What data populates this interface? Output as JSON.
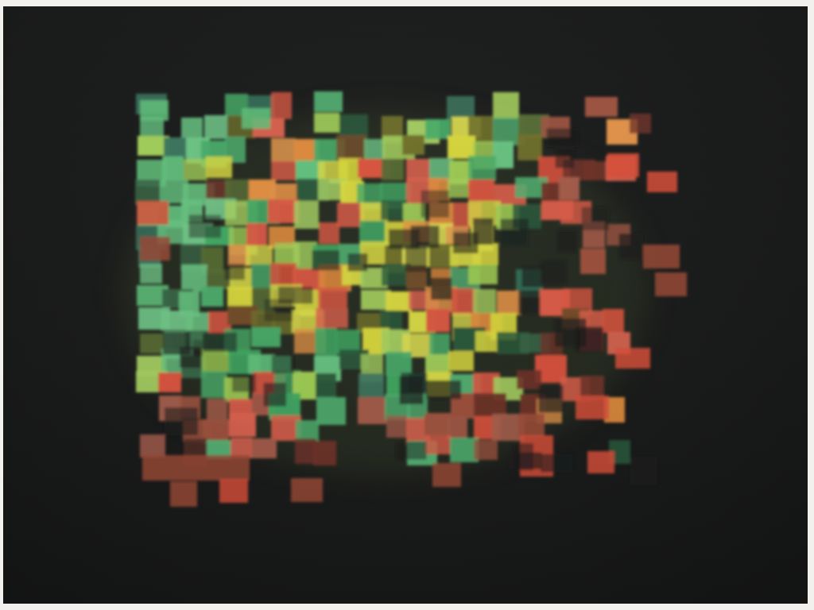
{
  "image": {
    "subject": "pixel-mosaic",
    "background_color": "#1a1b1b",
    "palette": {
      "green": "#3fa862",
      "mint": "#5fc07a",
      "lime": "#9fce52",
      "yellow": "#d9d93c",
      "orange": "#e08a3a",
      "red": "#d9503a",
      "brick": "#9a4a36",
      "teal": "#2f6d55"
    }
  }
}
